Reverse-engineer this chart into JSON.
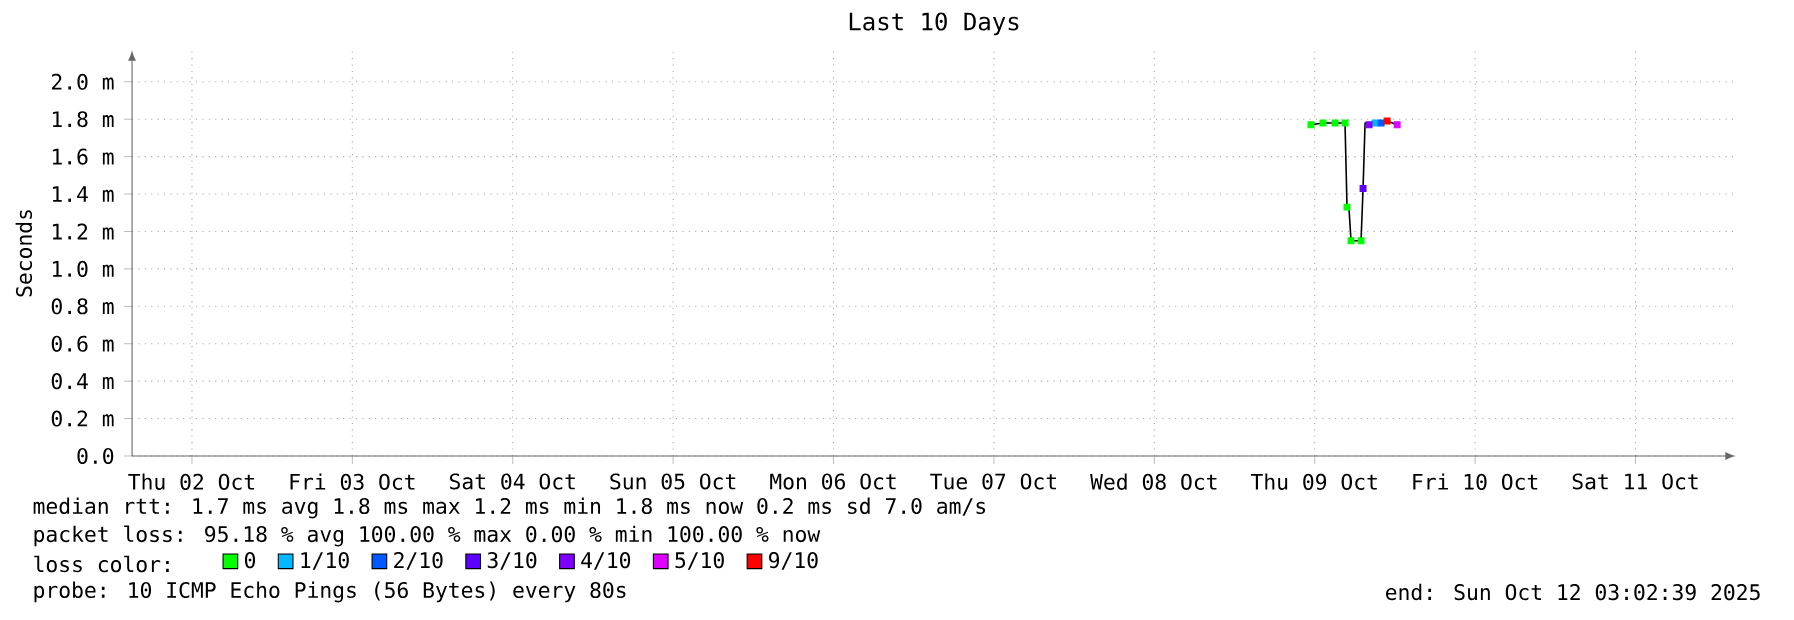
{
  "chart_data": {
    "type": "line",
    "title": "Last 10 Days",
    "ylabel": "Seconds",
    "xlim": [
      "2025-10-02T03:02",
      "2025-10-12T03:02"
    ],
    "xticks": [
      {
        "value": "2025-10-02T12:00",
        "label": "Thu 02 Oct"
      },
      {
        "value": "2025-10-03T12:00",
        "label": "Fri 03 Oct"
      },
      {
        "value": "2025-10-04T12:00",
        "label": "Sat 04 Oct"
      },
      {
        "value": "2025-10-05T12:00",
        "label": "Sun 05 Oct"
      },
      {
        "value": "2025-10-06T12:00",
        "label": "Mon 06 Oct"
      },
      {
        "value": "2025-10-07T12:00",
        "label": "Tue 07 Oct"
      },
      {
        "value": "2025-10-08T12:00",
        "label": "Wed 08 Oct"
      },
      {
        "value": "2025-10-09T12:00",
        "label": "Thu 09 Oct"
      },
      {
        "value": "2025-10-10T12:00",
        "label": "Fri 10 Oct"
      },
      {
        "value": "2025-10-11T12:00",
        "label": "Sat 11 Oct"
      }
    ],
    "ylim": [
      0,
      2.17
    ],
    "yticks": [
      {
        "value": 0,
        "label": "0.0"
      },
      {
        "value": 0.2,
        "label": "0.2 m"
      },
      {
        "value": 0.4,
        "label": "0.4 m"
      },
      {
        "value": 0.6,
        "label": "0.6 m"
      },
      {
        "value": 0.8,
        "label": "0.8 m"
      },
      {
        "value": 1.0,
        "label": "1.0 m"
      },
      {
        "value": 1.2,
        "label": "1.2 m"
      },
      {
        "value": 1.4,
        "label": "1.4 m"
      },
      {
        "value": 1.6,
        "label": "1.6 m"
      },
      {
        "value": 1.8,
        "label": "1.8 m"
      },
      {
        "value": 2.0,
        "label": "2.0 m"
      }
    ],
    "grid": true,
    "legend": "bottom",
    "legend_title": "loss color:",
    "series": [
      {
        "color": "#000000",
        "x": [
          "2025-10-09T11:26",
          "2025-10-09T13:14",
          "2025-10-09T15:02",
          "2025-10-09T16:32",
          "2025-10-09T16:50",
          "2025-10-09T17:08",
          "2025-10-09T17:26",
          "2025-10-09T18:56",
          "2025-10-09T19:14",
          "2025-10-09T19:32",
          "2025-10-09T21:02",
          "2025-10-09T22:50",
          "2025-10-10T00:20"
        ],
        "values": [
          1.77,
          1.78,
          1.78,
          1.78,
          1.33,
          1.32,
          1.15,
          1.15,
          1.43,
          1.78,
          1.78,
          1.79,
          1.77
        ]
      },
      {
        "type": "scatter",
        "name": "0",
        "color": "#00ff00",
        "x": [
          "2025-10-09T11:26",
          "2025-10-09T13:14",
          "2025-10-09T15:02",
          "2025-10-09T16:32",
          "2025-10-09T16:50",
          "2025-10-09T17:26",
          "2025-10-09T18:56"
        ],
        "values": [
          1.77,
          1.78,
          1.78,
          1.78,
          1.33,
          1.15,
          1.15
        ]
      },
      {
        "type": "scatter",
        "name": "1/10",
        "color": "#00b8ff",
        "x": [
          "2025-10-09T21:02"
        ],
        "values": [
          1.78
        ]
      },
      {
        "type": "scatter",
        "name": "2/10",
        "color": "#0059ff",
        "x": [
          "2025-10-09T21:56"
        ],
        "values": [
          1.78
        ]
      },
      {
        "type": "scatter",
        "name": "3/10",
        "color": "#5e00ff",
        "x": [
          "2025-10-09T19:14"
        ],
        "values": [
          1.43
        ]
      },
      {
        "type": "scatter",
        "name": "4/10",
        "color": "#7e00ff",
        "x": [
          "2025-10-09T20:08"
        ],
        "values": [
          1.77
        ]
      },
      {
        "type": "scatter",
        "name": "5/10",
        "color": "#dd00ff",
        "x": [
          "2025-10-10T00:20"
        ],
        "values": [
          1.77
        ]
      },
      {
        "type": "scatter",
        "name": "9/10",
        "color": "#ff0000",
        "x": [
          "2025-10-09T22:50"
        ],
        "values": [
          1.79
        ]
      }
    ],
    "annotations": [
      "median rtt:  1.7 ms avg  1.8 ms max  1.2 ms min  1.8 ms now  0.2 ms sd  7.0  am/s",
      "packet loss: 95.18 % avg  100.00 % max  0.00 % min  100.00 % now",
      "probe:       10 ICMP Echo Pings (56 Bytes) every 80s",
      "end: Sun Oct 12 03:02:39 2025"
    ]
  }
}
